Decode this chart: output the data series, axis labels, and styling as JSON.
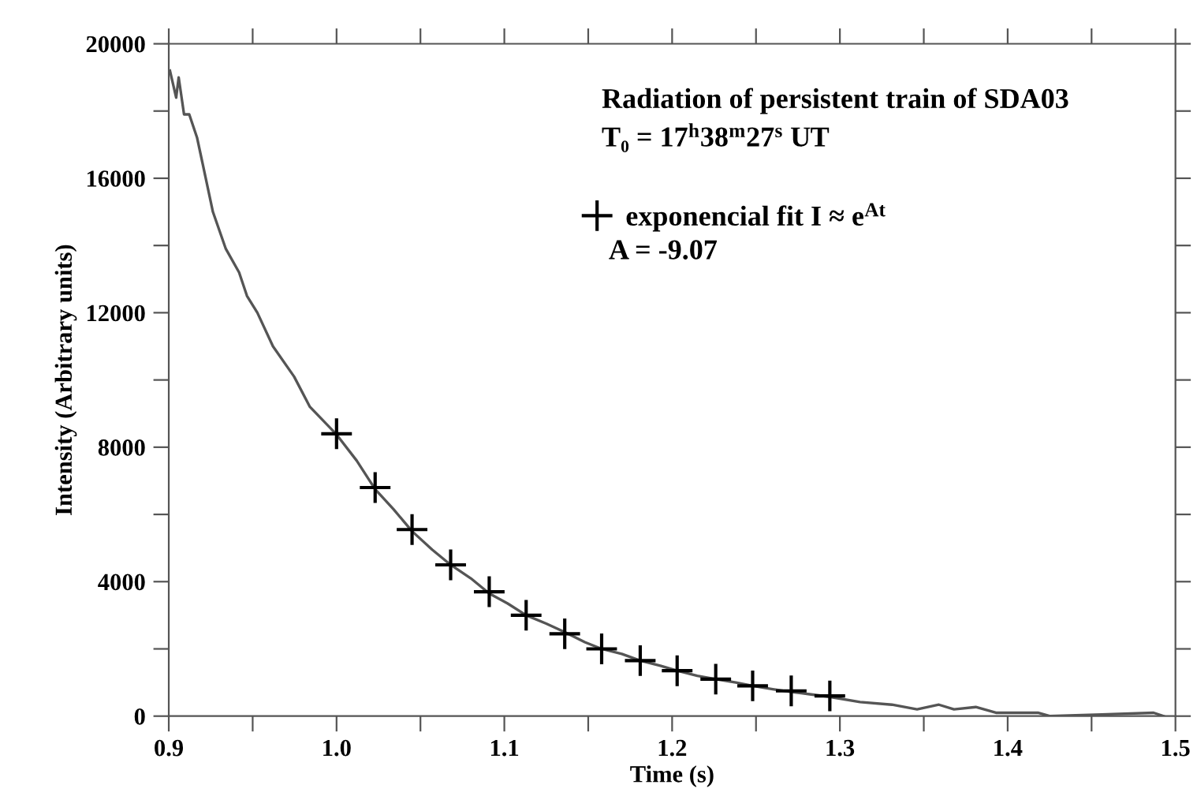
{
  "chart_data": {
    "type": "line",
    "title": "Radiation of persistent train of SDA03",
    "subtitle": "T₀ = 17$^{h}$38$^{m}$27$^{s}$ UT",
    "xlabel": "Time (s)",
    "ylabel": "Intensity (Arbitrary units)",
    "annotations": [
      "A = -9.07"
    ],
    "xlim": [
      0.9,
      1.5
    ],
    "ylim": [
      0,
      20000
    ],
    "xticks": [
      {
        "value": 0.9,
        "label": "0.9"
      },
      {
        "value": 0.95,
        "label": null
      },
      {
        "value": 1.0,
        "label": "1.0"
      },
      {
        "value": 1.05,
        "label": null
      },
      {
        "value": 1.1,
        "label": "1.1"
      },
      {
        "value": 1.15,
        "label": null
      },
      {
        "value": 1.2,
        "label": "1.2"
      },
      {
        "value": 1.25,
        "label": null
      },
      {
        "value": 1.3,
        "label": "1.3"
      },
      {
        "value": 1.35,
        "label": null
      },
      {
        "value": 1.4,
        "label": "1.4"
      },
      {
        "value": 1.45,
        "label": null
      },
      {
        "value": 1.5,
        "label": "1.5"
      }
    ],
    "yticks": [
      0,
      {
        "value": 2000,
        "label": null
      },
      4000,
      {
        "value": 6000,
        "label": null
      },
      8000,
      {
        "value": 10000,
        "label": null
      },
      12000,
      {
        "value": 14000,
        "label": null
      },
      16000,
      {
        "value": 18000,
        "label": null
      },
      20000
    ],
    "grid": false,
    "legend": "top right",
    "series": [
      {
        "color": "#555555",
        "marker": "none",
        "line_style": "solid",
        "x": [
          0.9007,
          0.9044,
          0.9059,
          0.9091,
          0.9122,
          0.9169,
          0.9216,
          0.9263,
          0.934,
          0.9419,
          0.9466,
          0.9528,
          0.9621,
          0.9747,
          0.9841,
          0.9996,
          1.012,
          1.023,
          1.034,
          1.045,
          1.057,
          1.068,
          1.08,
          1.091,
          1.102,
          1.113,
          1.125,
          1.136,
          1.148,
          1.158,
          1.17,
          1.181,
          1.193,
          1.203,
          1.215,
          1.226,
          1.238,
          1.248,
          1.26,
          1.271,
          1.282,
          1.293,
          1.312,
          1.331,
          1.346,
          1.359,
          1.368,
          1.381,
          1.393,
          1.418,
          1.425,
          1.456,
          1.487,
          1.493
        ],
        "values": [
          19200,
          18400,
          19000,
          17900,
          17900,
          17200,
          16100,
          15000,
          13900,
          13200,
          12500,
          12000,
          11000,
          10100,
          9200,
          8400,
          7600,
          6750,
          6150,
          5500,
          4950,
          4500,
          4100,
          3650,
          3350,
          3000,
          2750,
          2500,
          2200,
          2000,
          1850,
          1650,
          1500,
          1350,
          1200,
          1100,
          1000,
          900,
          800,
          720,
          650,
          580,
          420,
          340,
          200,
          340,
          200,
          270,
          100,
          100,
          0,
          50,
          100,
          0
        ]
      },
      {
        "type": "scatter",
        "name": "exponencial fit I ≈ e$^{At}$",
        "color": "#000000",
        "marker": "cross",
        "x": [
          1.0,
          1.023,
          1.045,
          1.068,
          1.091,
          1.113,
          1.136,
          1.158,
          1.181,
          1.203,
          1.226,
          1.248,
          1.271,
          1.294
        ],
        "values": [
          8400,
          6800,
          5550,
          4500,
          3700,
          3000,
          2450,
          2000,
          1650,
          1350,
          1100,
          900,
          750,
          600
        ]
      }
    ]
  }
}
